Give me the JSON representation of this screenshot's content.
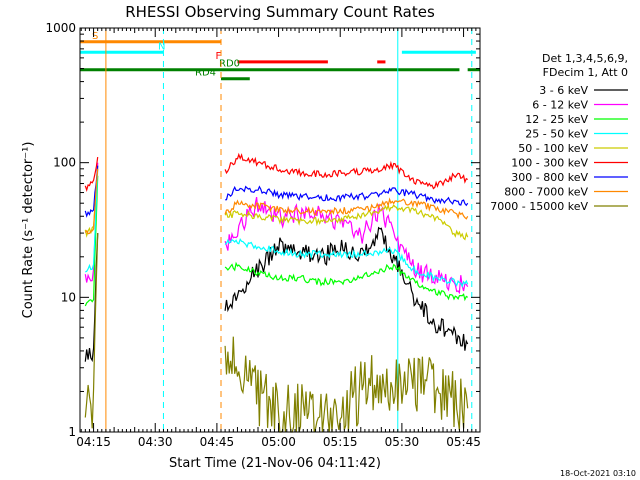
{
  "chart_data": {
    "type": "line",
    "title": "RHESSI Observing Summary Count Rates",
    "xlabel": "Start Time (21-Nov-06 04:11:42)",
    "ylabel": "Count Rate (s⁻¹ detector⁻¹)",
    "y_scale": "log",
    "ylim": [
      1,
      1000
    ],
    "xlim": [
      "04:11:42",
      "05:49:00"
    ],
    "x_ticks": [
      "04:15",
      "04:30",
      "04:45",
      "05:00",
      "05:15",
      "05:30",
      "05:45"
    ],
    "y_ticks": [
      "1",
      "10",
      "100",
      "1000"
    ],
    "grid": false,
    "legend_position": "right",
    "legend_header": [
      "Det 1,3,4,5,6,9,",
      "FDecim 1, Att 0"
    ],
    "timestamp": "18-Oct-2021 03:10",
    "series": [
      {
        "name": "3 - 6 keV",
        "color": "#000000",
        "x": [
          "04:13",
          "04:15",
          "04:16",
          "04:47",
          "04:50",
          "04:55",
          "05:00",
          "05:05",
          "05:10",
          "05:15",
          "05:20",
          "05:25",
          "05:28",
          "05:33",
          "05:38",
          "05:43",
          "05:46"
        ],
        "y": [
          3.5,
          4,
          30,
          8,
          11,
          16,
          25,
          22,
          19,
          24,
          20,
          30,
          20,
          10,
          6.5,
          5,
          4.5
        ]
      },
      {
        "name": "6 - 12 keV",
        "color": "#ff00ff",
        "x": [
          "04:13",
          "04:15",
          "04:16",
          "04:47",
          "04:50",
          "04:55",
          "05:00",
          "05:05",
          "05:10",
          "05:15",
          "05:20",
          "05:25",
          "05:28",
          "05:33",
          "05:38",
          "05:43",
          "05:46"
        ],
        "y": [
          13,
          14,
          100,
          24,
          32,
          50,
          38,
          42,
          42,
          36,
          28,
          45,
          28,
          16,
          14,
          13,
          12
        ]
      },
      {
        "name": "12 - 25 keV",
        "color": "#00ff00",
        "x": [
          "04:13",
          "04:15",
          "04:16",
          "04:47",
          "04:50",
          "04:55",
          "05:00",
          "05:05",
          "05:10",
          "05:15",
          "05:20",
          "05:25",
          "05:28",
          "05:33",
          "05:38",
          "05:43",
          "05:46"
        ],
        "y": [
          9,
          10,
          80,
          16,
          17,
          15,
          14,
          14,
          13,
          13,
          14,
          16,
          17,
          13,
          11,
          10,
          10
        ]
      },
      {
        "name": "25 - 50 keV",
        "color": "#00ffff",
        "x": [
          "04:13",
          "04:15",
          "04:16",
          "04:47",
          "04:50",
          "04:55",
          "05:00",
          "05:05",
          "05:10",
          "05:15",
          "05:20",
          "05:25",
          "05:28",
          "05:33",
          "05:38",
          "05:43",
          "05:46"
        ],
        "y": [
          16,
          17,
          90,
          25,
          26,
          24,
          22,
          21,
          21,
          21,
          21,
          22,
          22,
          16,
          14,
          13,
          12.5
        ]
      },
      {
        "name": "50 - 100 keV",
        "color": "#cccc00",
        "x": [
          "04:13",
          "04:15",
          "04:16",
          "04:47",
          "04:50",
          "04:55",
          "05:00",
          "05:05",
          "05:10",
          "05:15",
          "05:20",
          "05:25",
          "05:28",
          "05:33",
          "05:38",
          "05:43",
          "05:46"
        ],
        "y": [
          30,
          32,
          95,
          40,
          42,
          40,
          38,
          37,
          37,
          38,
          41,
          44,
          47,
          44,
          39,
          30,
          28
        ]
      },
      {
        "name": "100 - 300 keV",
        "color": "#ff0000",
        "x": [
          "04:13",
          "04:15",
          "04:16",
          "04:47",
          "04:50",
          "04:55",
          "05:00",
          "05:05",
          "05:10",
          "05:15",
          "05:20",
          "05:25",
          "05:28",
          "05:33",
          "05:38",
          "05:43",
          "05:46"
        ],
        "y": [
          65,
          70,
          110,
          85,
          110,
          100,
          90,
          84,
          82,
          83,
          86,
          90,
          95,
          72,
          67,
          80,
          75
        ]
      },
      {
        "name": "300 - 800 keV",
        "color": "#0000ff",
        "x": [
          "04:13",
          "04:15",
          "04:16",
          "04:47",
          "04:50",
          "04:55",
          "05:00",
          "05:05",
          "05:10",
          "05:15",
          "05:20",
          "05:25",
          "05:28",
          "05:33",
          "05:38",
          "05:43",
          "05:46"
        ],
        "y": [
          42,
          45,
          95,
          55,
          65,
          63,
          58,
          56,
          55,
          55,
          56,
          59,
          62,
          58,
          53,
          52,
          50
        ]
      },
      {
        "name": "800 - 7000 keV",
        "color": "#ff8800",
        "x": [
          "04:13",
          "04:15",
          "04:16",
          "04:47",
          "04:50",
          "04:55",
          "05:00",
          "05:05",
          "05:10",
          "05:15",
          "05:20",
          "05:25",
          "05:28",
          "05:33",
          "05:38",
          "05:43",
          "05:46"
        ],
        "y": [
          30,
          33,
          90,
          42,
          50,
          48,
          45,
          44,
          43,
          44,
          45,
          48,
          52,
          50,
          46,
          42,
          40
        ]
      },
      {
        "name": "7000 - 15000 keV",
        "color": "#808000",
        "x": [
          "04:13",
          "04:15",
          "04:16",
          "04:47",
          "04:50",
          "04:55",
          "05:00",
          "05:05",
          "05:10",
          "05:15",
          "05:20",
          "05:25",
          "05:28",
          "05:33",
          "05:38",
          "05:43",
          "05:46"
        ],
        "y": [
          1.8,
          1.8,
          30,
          5,
          3,
          2,
          1.5,
          1.3,
          1.2,
          1.4,
          2,
          2.2,
          2.5,
          2.2,
          2,
          1.8,
          1.5
        ]
      }
    ],
    "annotations": {
      "bars": [
        {
          "label": "S",
          "color": "#ff8800",
          "y": 790,
          "segments": [
            [
              "04:11:42",
              "04:46"
            ]
          ]
        },
        {
          "label": "N",
          "color": "#00ffff",
          "y": 660,
          "segments": [
            [
              "04:11:42",
              "04:32"
            ],
            [
              "05:30",
              "05:48"
            ]
          ]
        },
        {
          "label": "F",
          "color": "#ff0000",
          "y": 560,
          "segments": [
            [
              "04:50",
              "05:12"
            ],
            [
              "05:24",
              "05:26"
            ]
          ]
        },
        {
          "label": "RD0",
          "color": "#008000",
          "y": 490,
          "segments": [
            [
              "04:11:42",
              "05:29"
            ],
            [
              "05:29",
              "05:44"
            ],
            [
              "05:46",
              "05:49"
            ]
          ]
        },
        {
          "label": "RD4",
          "color": "#008000",
          "y": 420,
          "segments": [
            [
              "04:46",
              "04:53"
            ]
          ]
        }
      ],
      "vlines": [
        {
          "t": "04:11:42",
          "color": "#00ffff",
          "style": "solid"
        },
        {
          "t": "04:18",
          "color": "#ff8800",
          "style": "solid"
        },
        {
          "t": "04:32",
          "color": "#00ffff",
          "style": "dashed"
        },
        {
          "t": "04:46",
          "color": "#ff8800",
          "style": "dashed"
        },
        {
          "t": "05:29",
          "color": "#00ffff",
          "style": "solid"
        },
        {
          "t": "05:47",
          "color": "#00ffff",
          "style": "dashed"
        }
      ]
    }
  }
}
